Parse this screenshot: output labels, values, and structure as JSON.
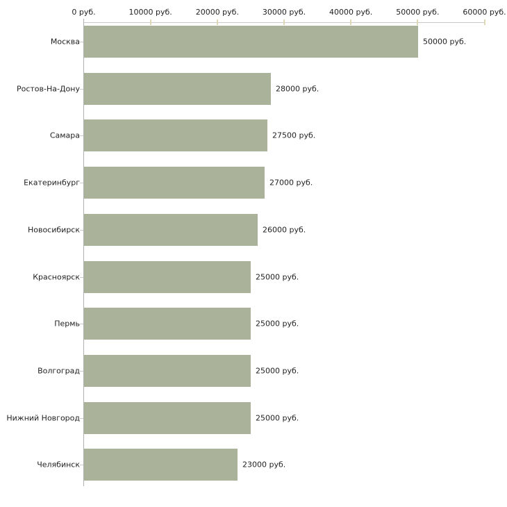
{
  "chart_data": {
    "type": "bar",
    "orientation": "horizontal",
    "title": "",
    "xlabel": "",
    "ylabel": "",
    "grid": false,
    "legend": false,
    "categories": [
      "Москва",
      "Ростов-На-Дону",
      "Самара",
      "Екатеринбург",
      "Новосибирск",
      "Красноярск",
      "Пермь",
      "Волгоград",
      "Нижний Новгород",
      "Челябинск"
    ],
    "values": [
      50000,
      28000,
      27500,
      27000,
      26000,
      25000,
      25000,
      25000,
      25000,
      23000
    ],
    "value_labels": [
      "50000 руб.",
      "28000 руб.",
      "27500 руб.",
      "27000 руб.",
      "26000 руб.",
      "25000 руб.",
      "25000 руб.",
      "25000 руб.",
      "25000 руб.",
      "23000 руб."
    ],
    "value_axis": {
      "position": "top",
      "min": 0,
      "max": 60000,
      "tick_interval": 10000,
      "tick_labels": [
        "0 руб.",
        "10000 руб.",
        "20000 руб.",
        "30000 руб.",
        "40000 руб.",
        "50000 руб.",
        "60000 руб."
      ]
    },
    "colors": {
      "bar": "#abb29a",
      "axis_line_x": "#c9c9c9",
      "axis_line_y": "#b0b0b0",
      "tick_mark": "#dcd9b6",
      "category_tick": "#c9c9c9",
      "text": "#222222"
    }
  }
}
